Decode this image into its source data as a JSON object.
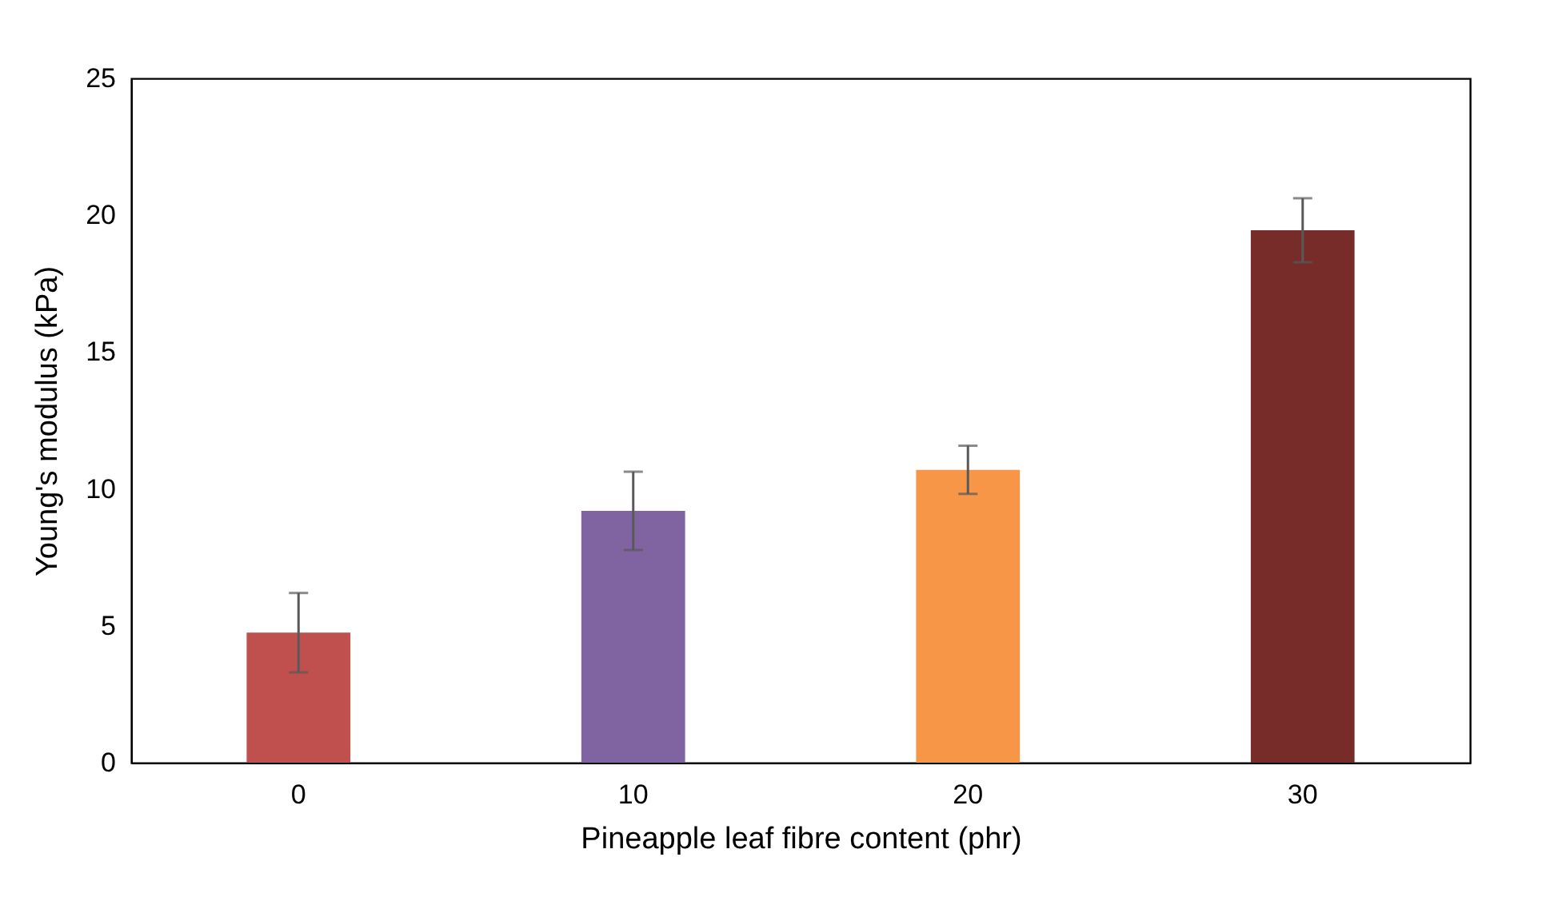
{
  "chart_data": {
    "type": "bar",
    "xlabel": "Pineapple leaf fibre content (phr)",
    "ylabel": "Young's modulus (kPa)",
    "categories": [
      "0",
      "10",
      "20",
      "30"
    ],
    "values": [
      4.75,
      9.2,
      10.7,
      19.45
    ],
    "colors": [
      "#c0504d",
      "#8064a2",
      "#f79646",
      "#772c2a"
    ],
    "errors": [
      1.45,
      1.43,
      0.88,
      1.17
    ],
    "ylim": [
      0,
      25
    ],
    "yticks": [
      0,
      5,
      10,
      15,
      20,
      25
    ],
    "grid": false,
    "legend": false
  }
}
